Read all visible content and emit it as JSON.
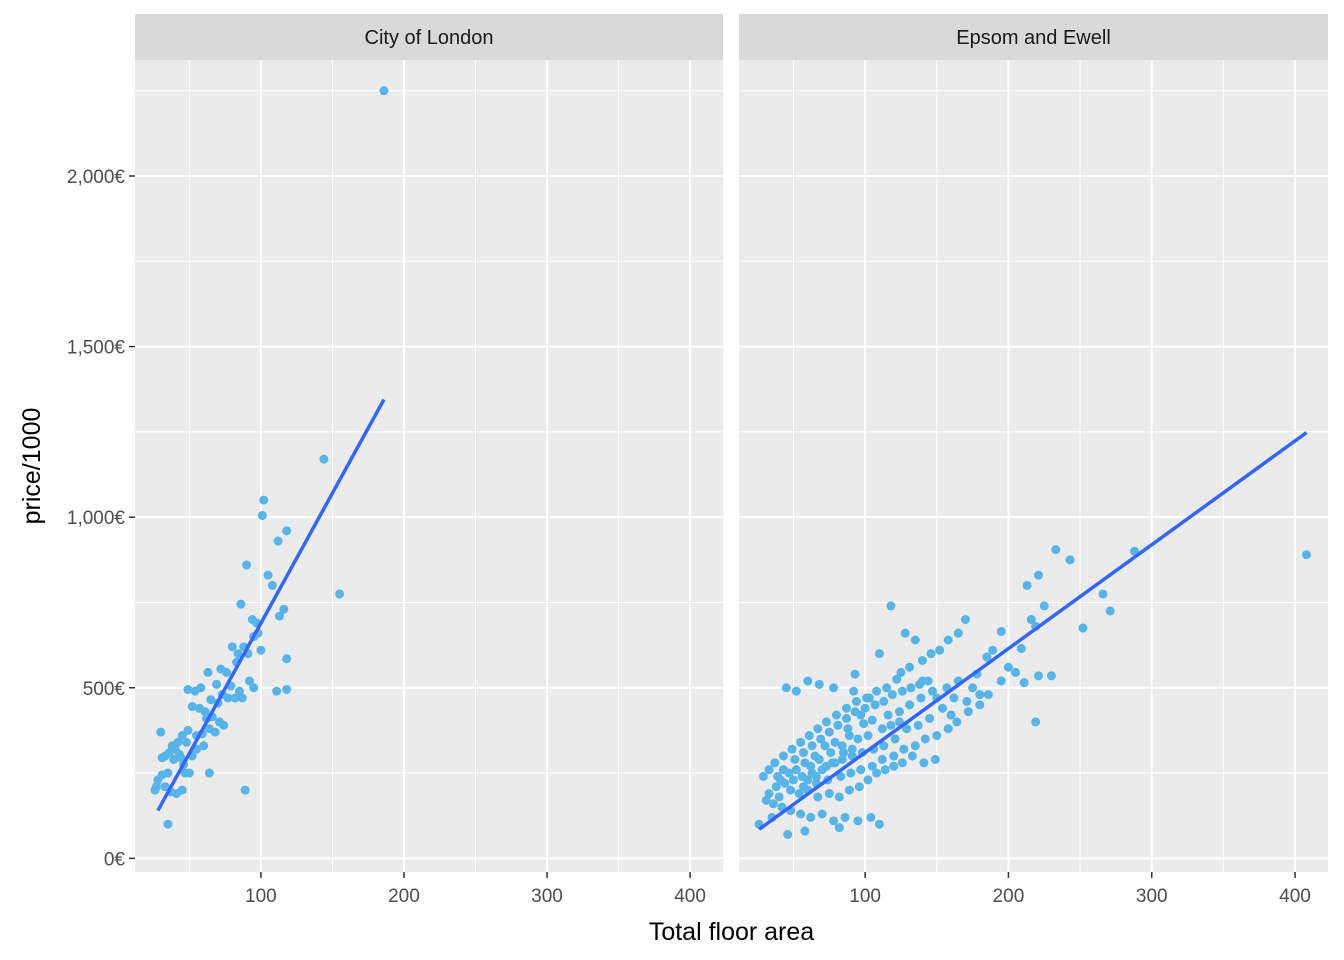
{
  "chart_data": {
    "type": "scatter",
    "xlabel": "Total floor area",
    "ylabel": "price/1000",
    "x_ticks": [
      "100",
      "200",
      "300",
      "400"
    ],
    "x_tick_values": [
      100,
      200,
      300,
      400
    ],
    "y_ticks": [
      "0€",
      "500€",
      "1,000€",
      "1,500€",
      "2,000€"
    ],
    "y_tick_values": [
      0,
      500,
      1000,
      1500,
      2000
    ],
    "xlim": [
      12,
      423
    ],
    "ylim": [
      -40,
      2340
    ],
    "grid": true,
    "colors": {
      "points": "#56b4e9",
      "line": "#3366ff",
      "panel": "#ebebeb",
      "strip": "#d9d9d9",
      "grid": "#ffffff"
    },
    "panels": [
      {
        "name": "City of London",
        "trend": {
          "x": [
            28,
            186
          ],
          "y": [
            140,
            1345
          ]
        },
        "points": [
          [
            186,
            2250
          ],
          [
            144,
            1170
          ],
          [
            102,
            1050
          ],
          [
            101,
            1005
          ],
          [
            155,
            775
          ],
          [
            118,
            960
          ],
          [
            112,
            930
          ],
          [
            105,
            830
          ],
          [
            108,
            800
          ],
          [
            116,
            730
          ],
          [
            113,
            710
          ],
          [
            118,
            585
          ],
          [
            90,
            860
          ],
          [
            86,
            745
          ],
          [
            94,
            700
          ],
          [
            97,
            690
          ],
          [
            95,
            650
          ],
          [
            88,
            620
          ],
          [
            91,
            600
          ],
          [
            80,
            620
          ],
          [
            83,
            575
          ],
          [
            76,
            545
          ],
          [
            72,
            555
          ],
          [
            69,
            510
          ],
          [
            79,
            505
          ],
          [
            85,
            490
          ],
          [
            95,
            500
          ],
          [
            111,
            490
          ],
          [
            118,
            495
          ],
          [
            63,
            545
          ],
          [
            58,
            500
          ],
          [
            49,
            495
          ],
          [
            54,
            490
          ],
          [
            52,
            445
          ],
          [
            57,
            440
          ],
          [
            61,
            430
          ],
          [
            66,
            415
          ],
          [
            71,
            400
          ],
          [
            74,
            390
          ],
          [
            64,
            380
          ],
          [
            68,
            370
          ],
          [
            59,
            365
          ],
          [
            55,
            360
          ],
          [
            49,
            375
          ],
          [
            45,
            360
          ],
          [
            42,
            340
          ],
          [
            38,
            330
          ],
          [
            36,
            310
          ],
          [
            33,
            300
          ],
          [
            31,
            295
          ],
          [
            30,
            370
          ],
          [
            39,
            290
          ],
          [
            44,
            295
          ],
          [
            46,
            275
          ],
          [
            50,
            250
          ],
          [
            35,
            250
          ],
          [
            31,
            245
          ],
          [
            28,
            230
          ],
          [
            27,
            210
          ],
          [
            26,
            200
          ],
          [
            33,
            210
          ],
          [
            37,
            195
          ],
          [
            41,
            190
          ],
          [
            45,
            200
          ],
          [
            47,
            250
          ],
          [
            52,
            300
          ],
          [
            55,
            320
          ],
          [
            60,
            330
          ],
          [
            64,
            250
          ],
          [
            89,
            200
          ],
          [
            35,
            100
          ],
          [
            40,
            320
          ],
          [
            43,
            305
          ],
          [
            48,
            340
          ],
          [
            62,
            410
          ],
          [
            77,
            470
          ],
          [
            82,
            470
          ],
          [
            87,
            470
          ],
          [
            73,
            480
          ],
          [
            65,
            465
          ],
          [
            70,
            455
          ],
          [
            84,
            600
          ],
          [
            100,
            610
          ],
          [
            92,
            520
          ],
          [
            98,
            660
          ]
        ]
      },
      {
        "name": "Epsom and Ewell",
        "trend": {
          "x": [
            26,
            408
          ],
          "y": [
            85,
            1248
          ]
        },
        "points": [
          [
            408,
            890
          ],
          [
            288,
            900
          ],
          [
            233,
            905
          ],
          [
            243,
            875
          ],
          [
            266,
            775
          ],
          [
            271,
            725
          ],
          [
            252,
            675
          ],
          [
            221,
            830
          ],
          [
            213,
            800
          ],
          [
            225,
            740
          ],
          [
            216,
            700
          ],
          [
            219,
            680
          ],
          [
            209,
            615
          ],
          [
            205,
            545
          ],
          [
            211,
            515
          ],
          [
            221,
            535
          ],
          [
            230,
            535
          ],
          [
            219,
            400
          ],
          [
            195,
            665
          ],
          [
            189,
            610
          ],
          [
            185,
            590
          ],
          [
            178,
            540
          ],
          [
            175,
            500
          ],
          [
            180,
            480
          ],
          [
            170,
            700
          ],
          [
            165,
            660
          ],
          [
            158,
            640
          ],
          [
            152,
            610
          ],
          [
            146,
            600
          ],
          [
            140,
            580
          ],
          [
            135,
            640
          ],
          [
            128,
            660
          ],
          [
            118,
            740
          ],
          [
            131,
            560
          ],
          [
            122,
            525
          ],
          [
            115,
            500
          ],
          [
            108,
            490
          ],
          [
            101,
            470
          ],
          [
            94,
            460
          ],
          [
            87,
            440
          ],
          [
            80,
            420
          ],
          [
            73,
            400
          ],
          [
            67,
            380
          ],
          [
            61,
            360
          ],
          [
            55,
            340
          ],
          [
            49,
            320
          ],
          [
            43,
            300
          ],
          [
            37,
            280
          ],
          [
            33,
            260
          ],
          [
            29,
            240
          ],
          [
            45,
            500
          ],
          [
            52,
            490
          ],
          [
            60,
            520
          ],
          [
            68,
            510
          ],
          [
            78,
            500
          ],
          [
            92,
            490
          ],
          [
            103,
            470
          ],
          [
            150,
            470
          ],
          [
            157,
            500
          ],
          [
            165,
            520
          ],
          [
            171,
            460
          ],
          [
            160,
            420
          ],
          [
            145,
            410
          ],
          [
            137,
            390
          ],
          [
            129,
            380
          ],
          [
            121,
            350
          ],
          [
            113,
            330
          ],
          [
            106,
            320
          ],
          [
            98,
            310
          ],
          [
            91,
            300
          ],
          [
            84,
            290
          ],
          [
            77,
            280
          ],
          [
            70,
            260
          ],
          [
            63,
            250
          ],
          [
            56,
            240
          ],
          [
            50,
            230
          ],
          [
            44,
            220
          ],
          [
            38,
            210
          ],
          [
            33,
            190
          ],
          [
            31,
            170
          ],
          [
            36,
            160
          ],
          [
            42,
            150
          ],
          [
            48,
            140
          ],
          [
            55,
            130
          ],
          [
            62,
            120
          ],
          [
            70,
            130
          ],
          [
            78,
            110
          ],
          [
            86,
            120
          ],
          [
            95,
            110
          ],
          [
            104,
            120
          ],
          [
            110,
            100
          ],
          [
            82,
            90
          ],
          [
            58,
            80
          ],
          [
            46,
            70
          ],
          [
            26,
            100
          ],
          [
            35,
            120
          ],
          [
            40,
            180
          ],
          [
            48,
            200
          ],
          [
            57,
            210
          ],
          [
            66,
            220
          ],
          [
            74,
            230
          ],
          [
            83,
            240
          ],
          [
            90,
            250
          ],
          [
            97,
            260
          ],
          [
            105,
            270
          ],
          [
            112,
            290
          ],
          [
            120,
            300
          ],
          [
            127,
            320
          ],
          [
            135,
            330
          ],
          [
            142,
            350
          ],
          [
            150,
            360
          ],
          [
            158,
            380
          ],
          [
            164,
            400
          ],
          [
            172,
            430
          ],
          [
            180,
            450
          ],
          [
            186,
            480
          ],
          [
            195,
            520
          ],
          [
            200,
            560
          ],
          [
            99,
            395
          ],
          [
            105,
            405
          ],
          [
            89,
            360
          ],
          [
            79,
            340
          ],
          [
            72,
            330
          ],
          [
            65,
            300
          ],
          [
            58,
            280
          ],
          [
            52,
            260
          ],
          [
            47,
            250
          ],
          [
            41,
            230
          ],
          [
            116,
            420
          ],
          [
            124,
            430
          ],
          [
            131,
            450
          ],
          [
            139,
            470
          ],
          [
            147,
            490
          ],
          [
            154,
            440
          ],
          [
            162,
            470
          ],
          [
            141,
            280
          ],
          [
            149,
            290
          ],
          [
            133,
            300
          ],
          [
            93,
            540
          ],
          [
            110,
            600
          ],
          [
            125,
            545
          ],
          [
            140,
            520
          ],
          [
            88,
            380
          ],
          [
            97,
            420
          ],
          [
            84,
            330
          ],
          [
            76,
            310
          ],
          [
            68,
            290
          ],
          [
            62,
            270
          ],
          [
            54,
            190
          ],
          [
            60,
            200
          ],
          [
            67,
            180
          ],
          [
            75,
            190
          ],
          [
            82,
            180
          ],
          [
            89,
            200
          ],
          [
            96,
            210
          ],
          [
            102,
            230
          ],
          [
            108,
            250
          ],
          [
            114,
            260
          ],
          [
            120,
            270
          ],
          [
            126,
            280
          ],
          [
            43,
            260
          ],
          [
            39,
            240
          ],
          [
            51,
            290
          ],
          [
            57,
            310
          ],
          [
            63,
            330
          ],
          [
            69,
            350
          ],
          [
            75,
            370
          ],
          [
            81,
            390
          ],
          [
            87,
            410
          ],
          [
            93,
            430
          ],
          [
            100,
            440
          ],
          [
            107,
            450
          ],
          [
            113,
            460
          ],
          [
            119,
            480
          ],
          [
            126,
            490
          ],
          [
            132,
            500
          ],
          [
            138,
            510
          ],
          [
            144,
            520
          ],
          [
            112,
            380
          ],
          [
            118,
            390
          ],
          [
            124,
            400
          ],
          [
            95,
            350
          ],
          [
            102,
            360
          ],
          [
            85,
            310
          ],
          [
            91,
            320
          ],
          [
            73,
            270
          ],
          [
            79,
            280
          ],
          [
            66,
            240
          ],
          [
            60,
            230
          ]
        ]
      }
    ]
  }
}
